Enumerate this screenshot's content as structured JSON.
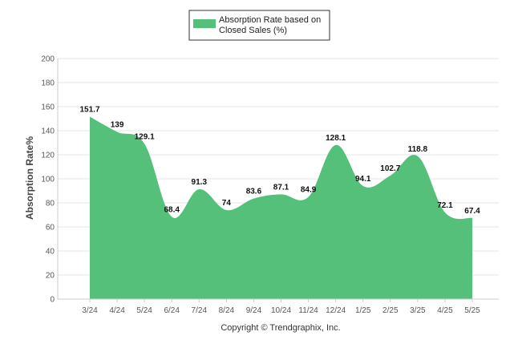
{
  "chart_data": {
    "type": "area",
    "categories": [
      "3/24",
      "4/24",
      "5/24",
      "6/24",
      "7/24",
      "8/24",
      "9/24",
      "10/24",
      "11/24",
      "12/24",
      "1/25",
      "2/25",
      "3/25",
      "4/25",
      "5/25"
    ],
    "series": [
      {
        "name": "Absorption Rate based on Closed Sales (%)",
        "values": [
          151.7,
          139,
          129.1,
          68.4,
          91.3,
          74,
          83.6,
          87.1,
          84.9,
          128.1,
          94.1,
          102.7,
          118.8,
          72.1,
          67.4
        ],
        "labels": [
          "151.7",
          "139",
          "129.1",
          "68.4",
          "91.3",
          "74",
          "83.6",
          "87.1",
          "84.9",
          "128.1",
          "94.1",
          "102.7",
          "118.8",
          "72.1",
          "67.4"
        ],
        "color": "#55c07a"
      }
    ],
    "title": "",
    "xlabel": "",
    "ylabel": "Absorption Rate%",
    "ylim": [
      0,
      200
    ],
    "yticks": [
      "0",
      "20",
      "40",
      "60",
      "80",
      "100",
      "120",
      "140",
      "160",
      "180",
      "200"
    ],
    "grid": true,
    "legend": "top-center",
    "legend_lines": [
      "Absorption Rate based on",
      "Closed Sales (%)"
    ]
  },
  "footer": {
    "copyright": "Copyright © Trendgraphix, Inc."
  },
  "colors": {
    "area_fill": "#55c07a",
    "grid": "#e6e6e6",
    "axis": "#cccccc"
  }
}
